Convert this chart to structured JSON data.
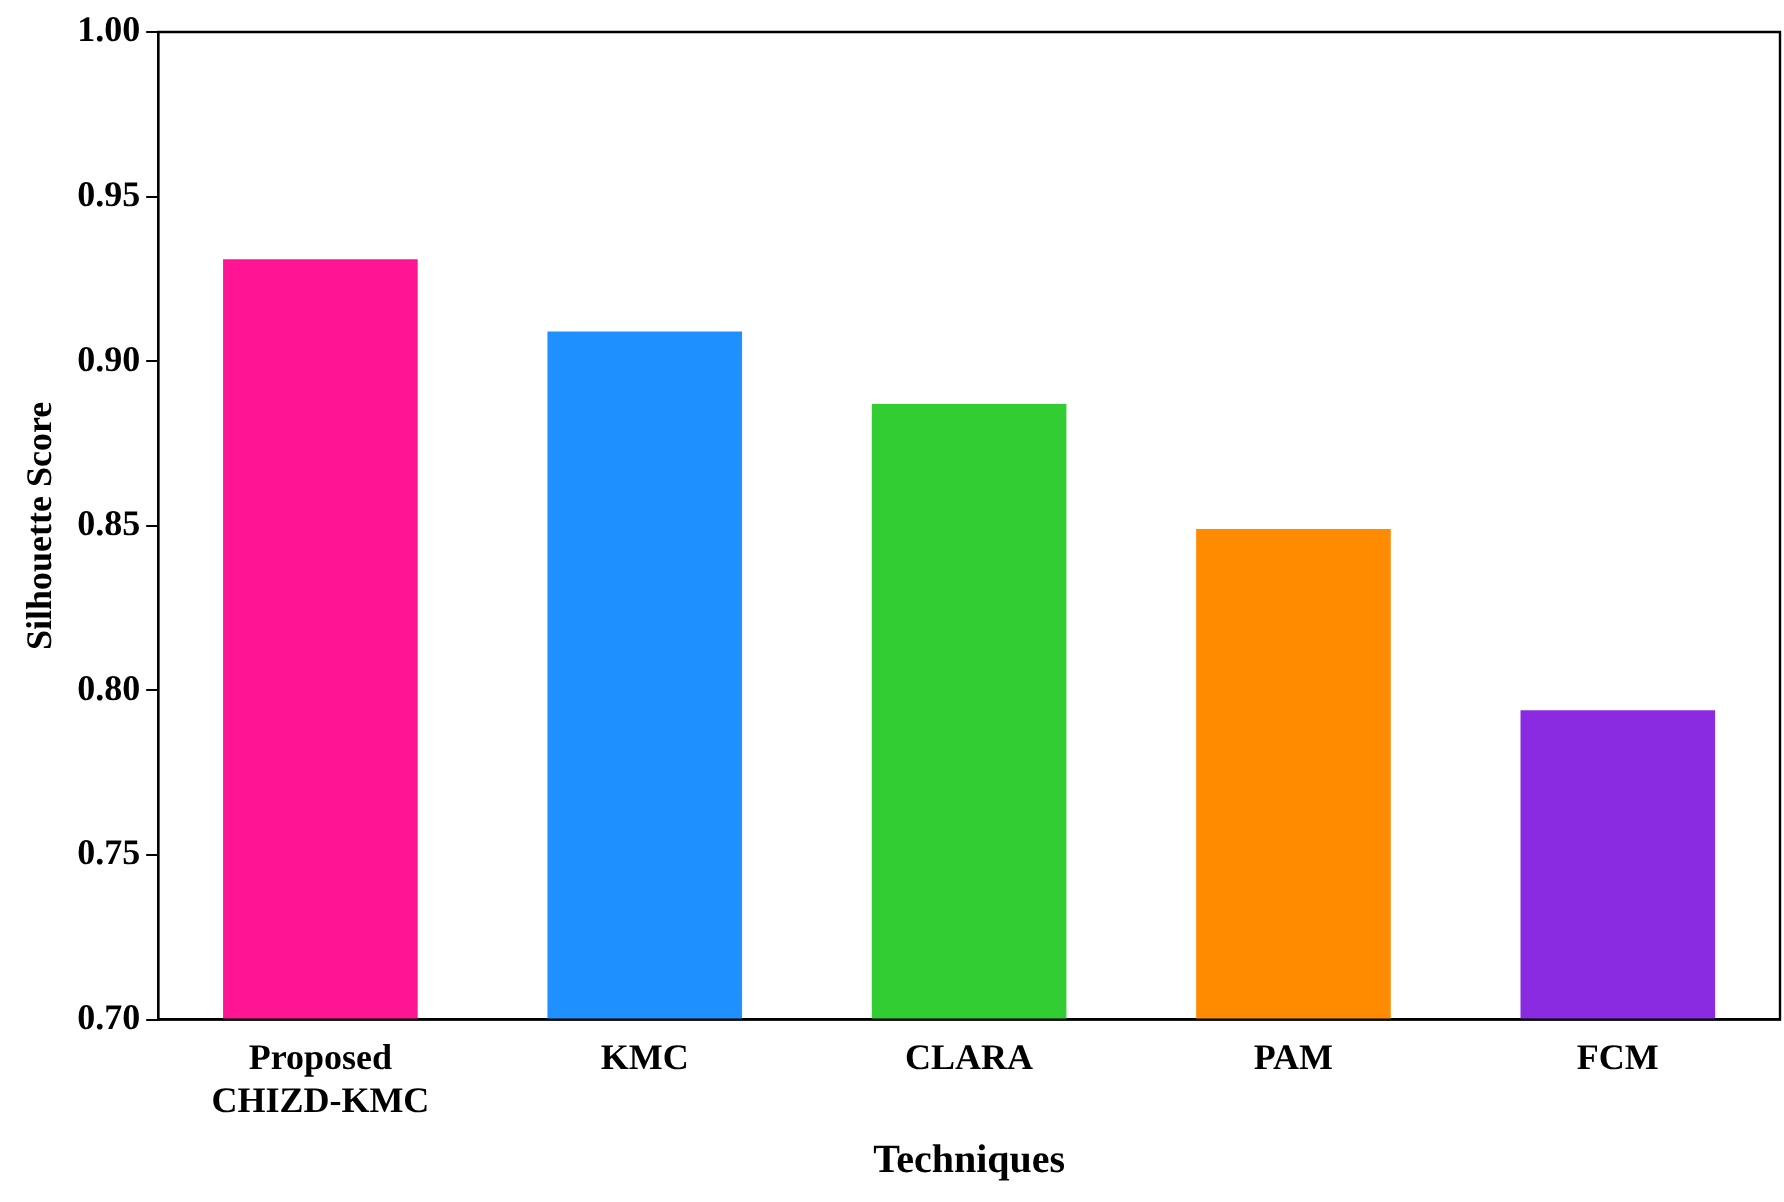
{
  "chart_data": {
    "type": "bar",
    "xlabel": "Techniques",
    "ylabel": "Silhouette Score",
    "categories": [
      "Proposed\nCHIZD-KMC",
      "KMC",
      "CLARA",
      "PAM",
      "FCM"
    ],
    "values": [
      0.931,
      0.909,
      0.887,
      0.849,
      0.794
    ],
    "colors": [
      "#ff1493",
      "#1e90ff",
      "#32cd32",
      "#ff8c00",
      "#8a2be2"
    ],
    "ylim": [
      0.7,
      1.0
    ],
    "yticks": [
      {
        "value": 0.7,
        "label": "0.70"
      },
      0.75,
      {
        "value": 0.8,
        "label": "0.80"
      },
      0.85,
      {
        "value": 0.9,
        "label": "0.90"
      },
      0.95,
      {
        "value": 1.0,
        "label": "1.00"
      }
    ],
    "grid": false,
    "legend": false
  }
}
